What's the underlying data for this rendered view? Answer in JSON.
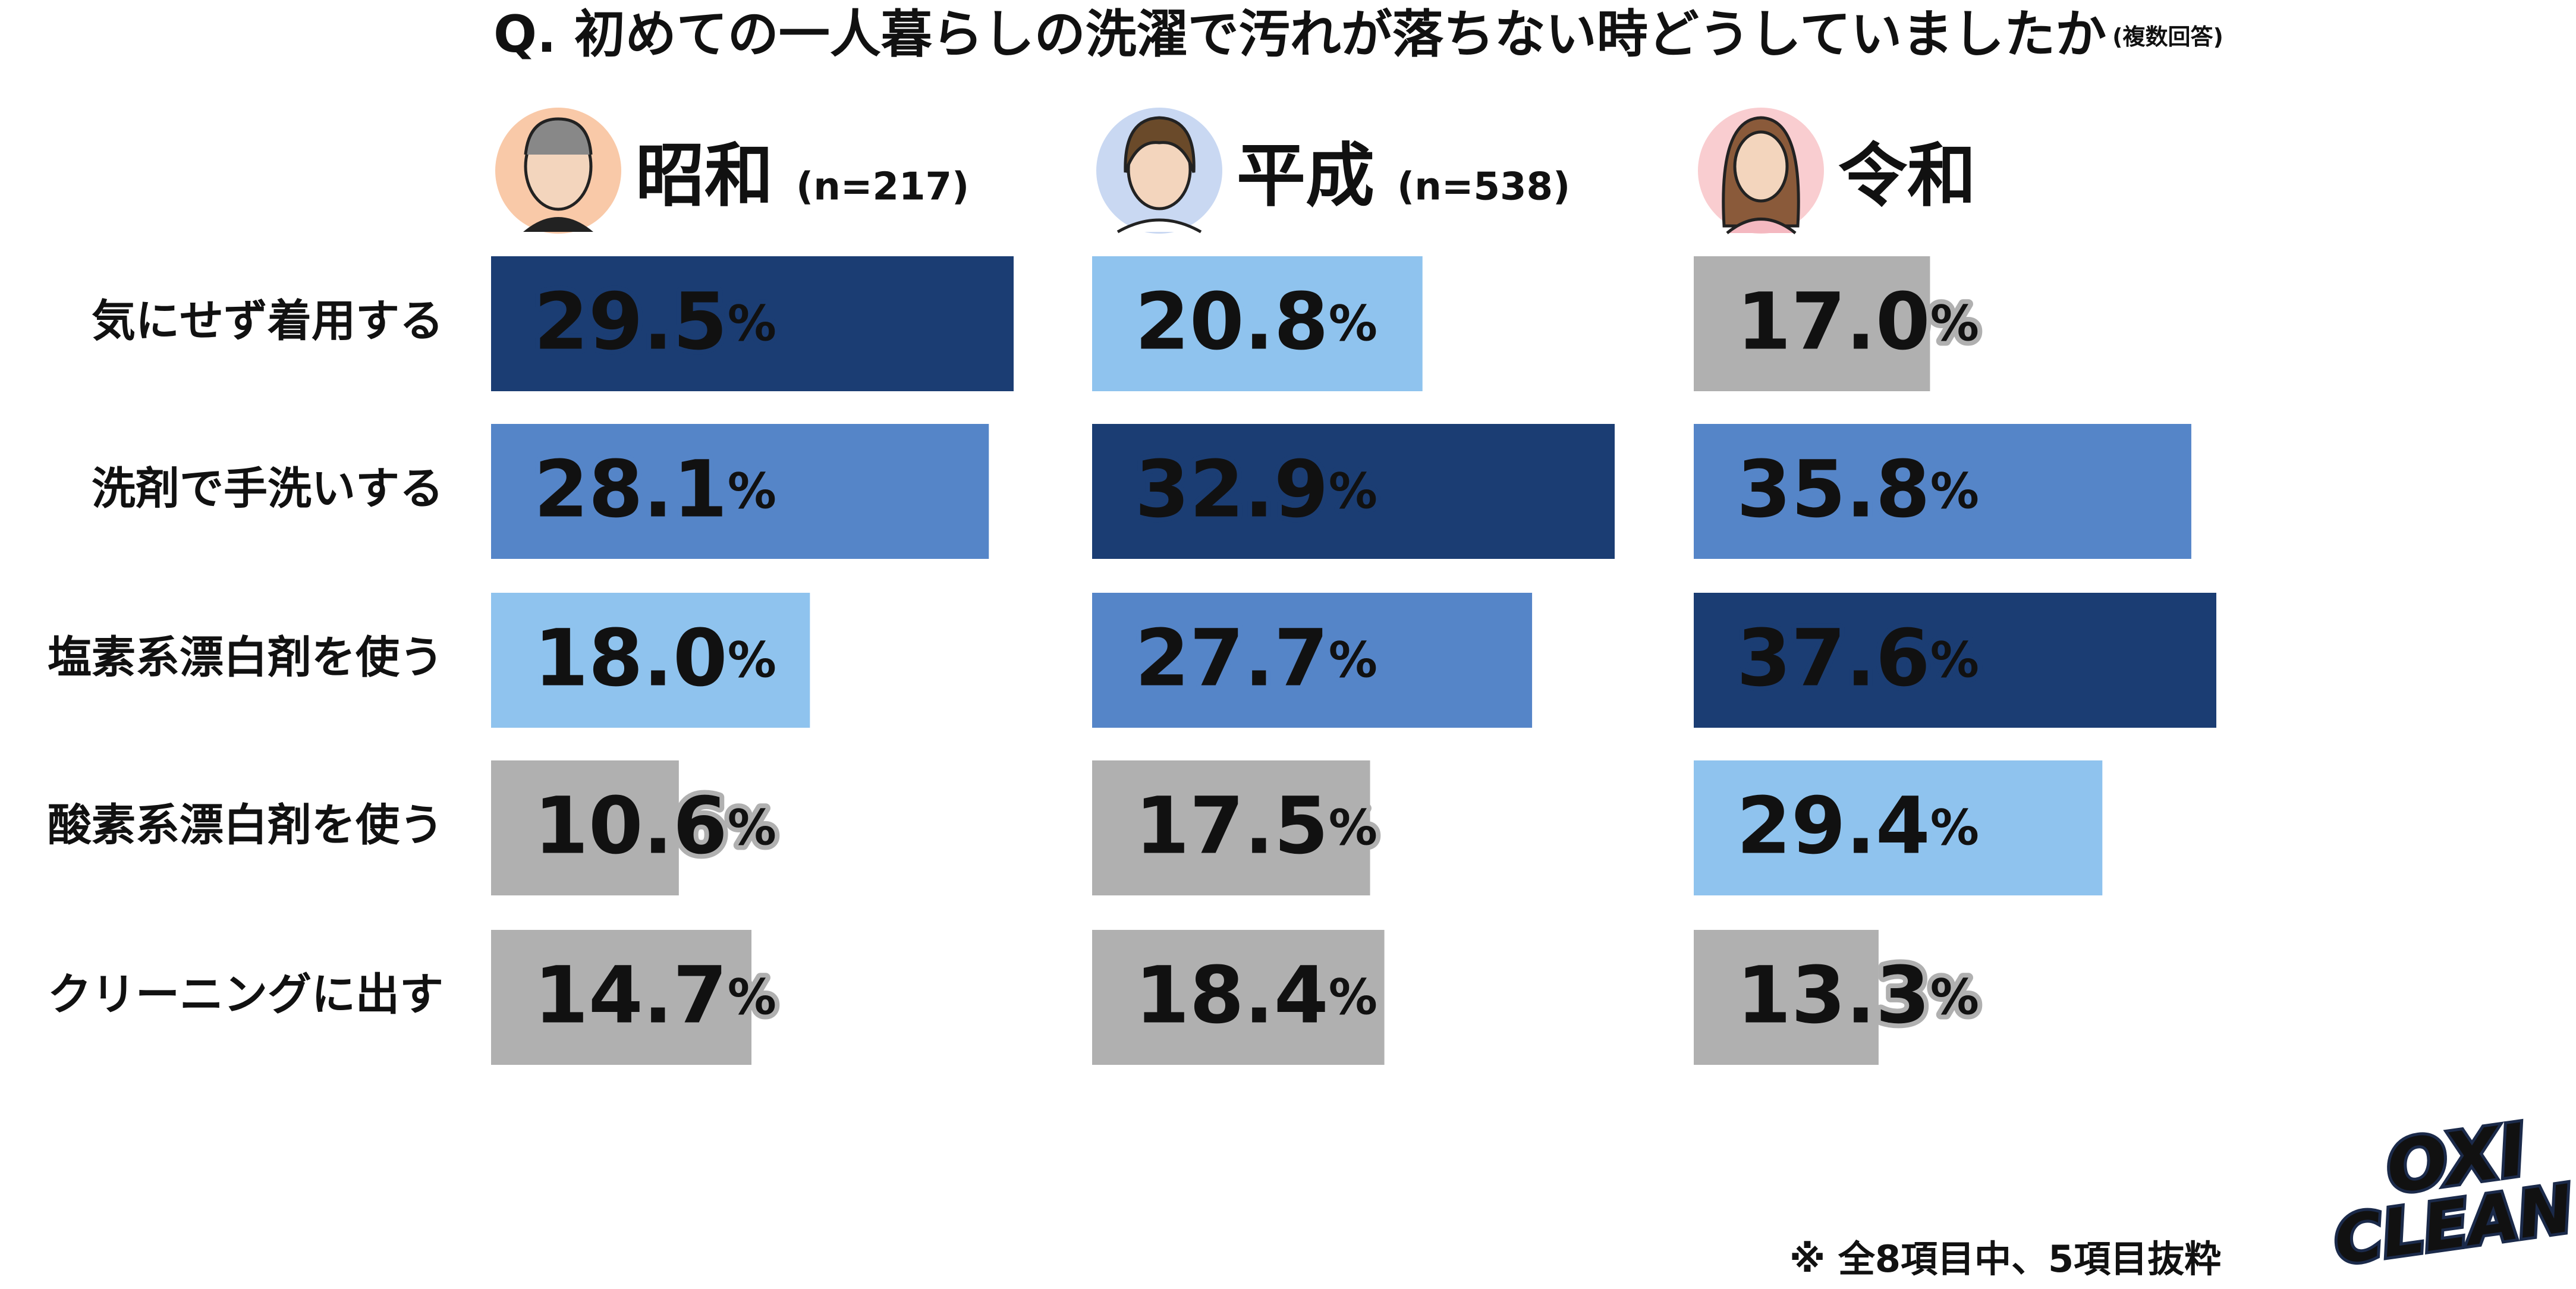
{
  "title": "Q. 初めての一人暮らしの洗濯で汚れが落ちない時どうしていましたか",
  "title_note": "(複数回答)",
  "footnote": "※ 全8項目中、5項目抜粋",
  "logo": [
    "OXI",
    "CLEAN"
  ],
  "chart_data": [
    {
      "type": "bar",
      "orientation": "horizontal",
      "title": "昭和",
      "subtitle": "(n=217)",
      "categories": [
        "気にせず着用する",
        "洗剤で手洗いする",
        "塩素系漂白剤を使う",
        "酸素系漂白剤を使う",
        "クリーニングに出す"
      ],
      "values": [
        29.5,
        28.1,
        18.0,
        10.6,
        14.7
      ],
      "value_labels": [
        "29.5%",
        "28.1%",
        "18.0%",
        "10.6%",
        "14.7%"
      ],
      "colors": [
        "#1b3d73",
        "#5585c8",
        "#8fc3ee",
        "#b0b0b0",
        "#b0b0b0"
      ],
      "xlim": [
        0,
        29.5
      ]
    },
    {
      "type": "bar",
      "orientation": "horizontal",
      "title": "平成",
      "subtitle": "(n=538)",
      "values": [
        20.8,
        32.9,
        27.7,
        17.5,
        18.4
      ],
      "value_labels": [
        "20.8%",
        "32.9%",
        "27.7%",
        "17.5%",
        "18.4%"
      ],
      "colors": [
        "#8fc3ee",
        "#1b3d73",
        "#5585c8",
        "#b0b0b0",
        "#b0b0b0"
      ],
      "xlim": [
        0,
        32.9
      ]
    },
    {
      "type": "bar",
      "orientation": "horizontal",
      "title": "令和",
      "values": [
        17.0,
        35.8,
        37.6,
        29.4,
        13.3
      ],
      "value_labels": [
        "17.0%",
        "35.8%",
        "37.6%",
        "29.4%",
        "13.3%"
      ],
      "colors": [
        "#b0b0b0",
        "#5585c8",
        "#1b3d73",
        "#8fc3ee",
        "#b0b0b0"
      ],
      "xlim": [
        0,
        37.6
      ]
    }
  ]
}
